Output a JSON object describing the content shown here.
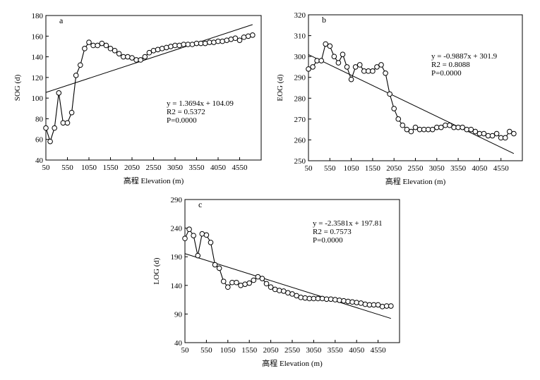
{
  "chart_data": [
    {
      "type": "scatter",
      "panel_label": "a",
      "xlabel": "高程 Elevation (m)",
      "ylabel": "SOG (d)",
      "xlim": [
        50,
        5050
      ],
      "ylim": [
        40,
        180
      ],
      "xticks": [
        50,
        550,
        1050,
        1550,
        2050,
        2550,
        3050,
        3550,
        4050,
        4550
      ],
      "yticks": [
        40,
        60,
        80,
        100,
        120,
        140,
        160,
        180
      ],
      "series": [
        {
          "x": [
            50,
            150,
            250,
            350,
            450,
            550,
            650,
            750,
            850,
            950,
            1050,
            1150,
            1250,
            1350,
            1450,
            1550,
            1650,
            1750,
            1850,
            1950,
            2050,
            2150,
            2250,
            2350,
            2450,
            2550,
            2650,
            2750,
            2850,
            2950,
            3050,
            3150,
            3250,
            3350,
            3450,
            3550,
            3650,
            3750,
            3850,
            3950,
            4050,
            4150,
            4250,
            4350,
            4450,
            4550,
            4650,
            4750,
            4850
          ],
          "y": [
            71,
            58,
            71,
            105,
            76,
            76,
            86,
            122,
            132,
            148,
            154,
            151,
            151,
            153,
            151,
            148,
            146,
            143,
            140,
            140,
            139,
            137,
            137,
            140,
            144,
            146,
            147,
            148,
            149,
            150,
            151,
            151,
            152,
            152,
            152,
            153,
            153,
            153,
            154,
            154,
            155,
            155,
            156,
            157,
            158,
            156,
            159,
            160,
            161
          ]
        }
      ],
      "trendline": {
        "slope_per_step": 1.3694,
        "intercept": 104.09,
        "x_start": 50,
        "step": 100
      },
      "annotation": {
        "equation": "y = 1.3694x + 104.09",
        "r2": "R2 = 0.5372",
        "p": "P=0.0000"
      }
    },
    {
      "type": "scatter",
      "panel_label": "b",
      "xlabel": "高程 Elevation (m)",
      "ylabel": "EOG (d)",
      "xlim": [
        50,
        5050
      ],
      "ylim": [
        250,
        320
      ],
      "xticks": [
        50,
        550,
        1050,
        1550,
        2050,
        2550,
        3050,
        3550,
        4050,
        4550
      ],
      "yticks": [
        250,
        260,
        270,
        280,
        290,
        300,
        310,
        320
      ],
      "series": [
        {
          "x": [
            50,
            150,
            250,
            350,
            450,
            550,
            650,
            750,
            850,
            950,
            1050,
            1150,
            1250,
            1350,
            1450,
            1550,
            1650,
            1750,
            1850,
            1950,
            2050,
            2150,
            2250,
            2350,
            2450,
            2550,
            2650,
            2750,
            2850,
            2950,
            3050,
            3150,
            3250,
            3350,
            3450,
            3550,
            3650,
            3750,
            3850,
            3950,
            4050,
            4150,
            4250,
            4350,
            4450,
            4550,
            4650,
            4750,
            4850
          ],
          "y": [
            294,
            295,
            298,
            298,
            306,
            305,
            300,
            297,
            301,
            295,
            289,
            295,
            296,
            293,
            293,
            293,
            295,
            296,
            292,
            282,
            275,
            270,
            267,
            265,
            264,
            266,
            265,
            265,
            265,
            265,
            266,
            266,
            267,
            267,
            266,
            266,
            266,
            265,
            265,
            264,
            263,
            263,
            262,
            262,
            263,
            261,
            261,
            264,
            263
          ]
        }
      ],
      "trendline": {
        "slope_per_step": -0.9887,
        "intercept": 301.9,
        "x_start": 50,
        "step": 100
      },
      "annotation": {
        "equation": "y = -0.9887x + 301.9",
        "r2": "R2 = 0.8088",
        "p": "P=0.0000"
      }
    },
    {
      "type": "scatter",
      "panel_label": "c",
      "xlabel": "高程 Elevation (m)",
      "ylabel": "LOG (d)",
      "xlim": [
        50,
        5050
      ],
      "ylim": [
        40,
        290
      ],
      "xticks": [
        50,
        550,
        1050,
        1550,
        2050,
        2550,
        3050,
        3550,
        4050,
        4550
      ],
      "yticks": [
        40,
        90,
        140,
        190,
        240,
        290
      ],
      "series": [
        {
          "x": [
            50,
            150,
            250,
            350,
            450,
            550,
            650,
            750,
            850,
            950,
            1050,
            1150,
            1250,
            1350,
            1450,
            1550,
            1650,
            1750,
            1850,
            1950,
            2050,
            2150,
            2250,
            2350,
            2450,
            2550,
            2650,
            2750,
            2850,
            2950,
            3050,
            3150,
            3250,
            3350,
            3450,
            3550,
            3650,
            3750,
            3850,
            3950,
            4050,
            4150,
            4250,
            4350,
            4450,
            4550,
            4650,
            4750,
            4850
          ],
          "y": [
            222,
            238,
            227,
            192,
            230,
            228,
            215,
            176,
            170,
            147,
            137,
            145,
            145,
            140,
            142,
            144,
            149,
            155,
            152,
            143,
            137,
            133,
            131,
            130,
            127,
            125,
            122,
            119,
            118,
            117,
            117,
            117,
            117,
            116,
            116,
            115,
            114,
            113,
            112,
            111,
            110,
            109,
            107,
            106,
            106,
            106,
            103,
            104,
            104
          ]
        }
      ],
      "trendline": {
        "slope_per_step": -2.3581,
        "intercept": 197.81,
        "x_start": 50,
        "step": 100
      },
      "annotation": {
        "equation": "y = -2.3581x + 197.81",
        "r2": "R2 = 0.7573",
        "p": "P=0.0000"
      }
    }
  ]
}
